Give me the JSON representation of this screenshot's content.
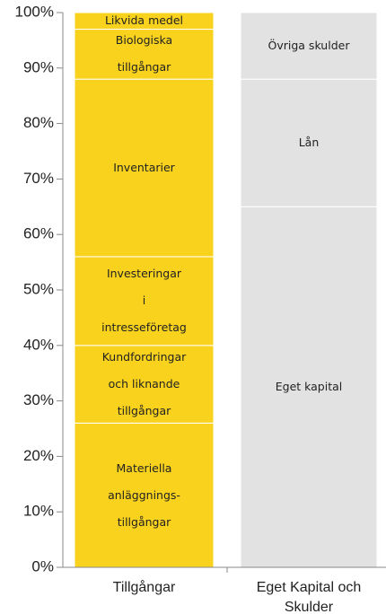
{
  "chart_data": {
    "type": "bar",
    "stacked": true,
    "categories": [
      "Tillgångar",
      "Eget Kapital och Skulder"
    ],
    "series": [
      {
        "name": "Materiella\nanläggnings-\ntillgångar",
        "color": "#f9d21d",
        "values": [
          26,
          null
        ]
      },
      {
        "name": "Kundfordringar\noch liknande\ntillgångar",
        "color": "#f9d21d",
        "values": [
          14,
          null
        ]
      },
      {
        "name": "Investeringar\ni\nintresseföretag",
        "color": "#f9d21d",
        "values": [
          16,
          null
        ]
      },
      {
        "name": "Inventarier",
        "color": "#f9d21d",
        "values": [
          32,
          null
        ]
      },
      {
        "name": "Biologiska\ntillgångar",
        "color": "#f9d21d",
        "values": [
          9,
          null
        ]
      },
      {
        "name": "Likvida medel",
        "color": "#f9d21d",
        "values": [
          3,
          null
        ]
      },
      {
        "name": "Eget kapital",
        "color": "#e2e2e2",
        "values": [
          null,
          65
        ]
      },
      {
        "name": "Lån",
        "color": "#e2e2e2",
        "values": [
          null,
          23
        ]
      },
      {
        "name": "Övriga skulder",
        "color": "#e2e2e2",
        "values": [
          null,
          12
        ]
      }
    ],
    "ylim": [
      0,
      100
    ],
    "yticks": [
      {
        "value": 0,
        "label": "0%"
      },
      {
        "value": 10,
        "label": "10%"
      },
      {
        "value": 20,
        "label": "20%"
      },
      {
        "value": 30,
        "label": "30%"
      },
      {
        "value": 40,
        "label": "40%"
      },
      {
        "value": 50,
        "label": "50%"
      },
      {
        "value": 60,
        "label": "60%"
      },
      {
        "value": 70,
        "label": "70%"
      },
      {
        "value": 80,
        "label": "80%"
      },
      {
        "value": 90,
        "label": "90%"
      },
      {
        "value": 100,
        "label": "100%"
      }
    ]
  }
}
